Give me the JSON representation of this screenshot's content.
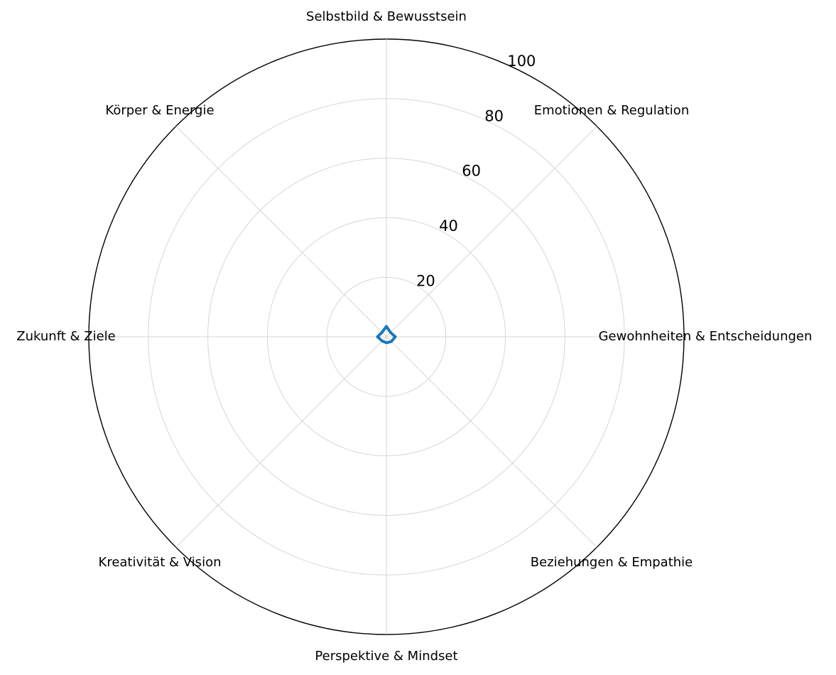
{
  "chart_data": {
    "type": "radar",
    "categories": [
      "Selbstbild & Bewusstsein",
      "Emotionen & Regulation",
      "Gewohnheiten & Entscheidungen",
      "Beziehungen & Empathie",
      "Perspektive & Mindset",
      "Kreativität & Vision",
      "Zukunft & Ziele",
      "Körper & Energie"
    ],
    "series": [
      {
        "values": [
          3.5,
          2,
          3,
          2.3,
          2,
          2,
          3,
          2.1
        ],
        "color": "#1f77b4"
      }
    ],
    "radial_ticks": [
      20,
      40,
      60,
      80,
      100
    ],
    "rlim": [
      0,
      100
    ],
    "grid": true,
    "legend": false
  }
}
